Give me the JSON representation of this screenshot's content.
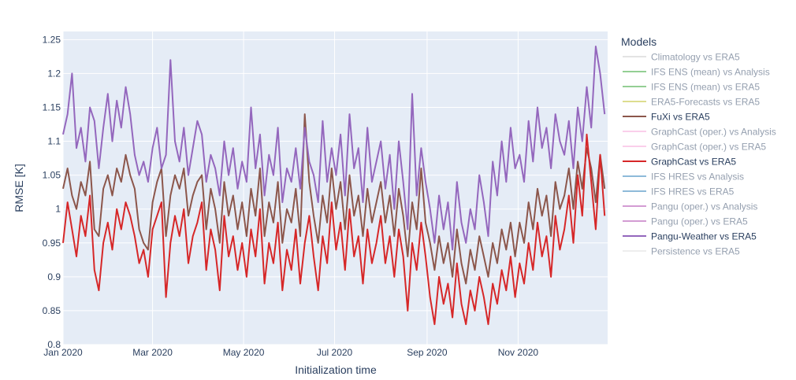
{
  "chart_data": {
    "type": "line",
    "xlabel": "Initialization time",
    "ylabel": "RMSE [K]",
    "xlim": [
      "2020-01-01",
      "2020-12-31"
    ],
    "ylim": [
      0.8,
      1.262
    ],
    "grid": true,
    "x_ticks": [
      {
        "date": "2020-01-01",
        "label": "Jan 2020"
      },
      {
        "date": "2020-03-01",
        "label": "Mar 2020"
      },
      {
        "date": "2020-05-01",
        "label": "May 2020"
      },
      {
        "date": "2020-07-01",
        "label": "Jul 2020"
      },
      {
        "date": "2020-09-01",
        "label": "Sep 2020"
      },
      {
        "date": "2020-11-01",
        "label": "Nov 2020"
      }
    ],
    "y_ticks": [
      {
        "value": 0.8,
        "label": "0.8"
      },
      {
        "value": 0.85,
        "label": "0.85"
      },
      {
        "value": 0.9,
        "label": "0.9"
      },
      {
        "value": 0.95,
        "label": "0.95"
      },
      {
        "value": 1.0,
        "label": "1"
      },
      {
        "value": 1.05,
        "label": "1.05"
      },
      {
        "value": 1.1,
        "label": "1.1"
      },
      {
        "value": 1.15,
        "label": "1.15"
      },
      {
        "value": 1.2,
        "label": "1.2"
      },
      {
        "value": 1.25,
        "label": "1.25"
      }
    ],
    "legend": {
      "title": "Models",
      "placement": "right",
      "entries": [
        {
          "name": "Climatology vs ERA5",
          "color": "#c8c8c8",
          "visible": false
        },
        {
          "name": "IFS ENS (mean) vs Analysis",
          "color": "#2ca02c",
          "visible": false
        },
        {
          "name": "IFS ENS (mean) vs ERA5",
          "color": "#2ca02c",
          "visible": false
        },
        {
          "name": "ERA5-Forecasts vs ERA5",
          "color": "#bcbd22",
          "visible": false
        },
        {
          "name": "FuXi vs ERA5",
          "color": "#8c564b",
          "visible": true
        },
        {
          "name": "GraphCast (oper.) vs Analysis",
          "color": "#f7a1d8",
          "visible": false
        },
        {
          "name": "GraphCast (oper.) vs ERA5",
          "color": "#f7a1d8",
          "visible": false
        },
        {
          "name": "GraphCast vs ERA5",
          "color": "#d62728",
          "visible": true
        },
        {
          "name": "IFS HRES vs Analysis",
          "color": "#1f77b4",
          "visible": false
        },
        {
          "name": "IFS HRES vs ERA5",
          "color": "#1f77b4",
          "visible": false
        },
        {
          "name": "Pangu (oper.) vs Analysis",
          "color": "#a83ca8",
          "visible": false
        },
        {
          "name": "Pangu (oper.) vs ERA5",
          "color": "#a83ca8",
          "visible": false
        },
        {
          "name": "Pangu-Weather vs ERA5",
          "color": "#9467bd",
          "visible": true
        },
        {
          "name": "Persistence vs ERA5",
          "color": "#dcdcdc",
          "visible": false
        }
      ]
    },
    "x": [
      "2020-01-01",
      "2020-01-04",
      "2020-01-07",
      "2020-01-10",
      "2020-01-13",
      "2020-01-16",
      "2020-01-19",
      "2020-01-22",
      "2020-01-25",
      "2020-01-28",
      "2020-01-31",
      "2020-02-03",
      "2020-02-06",
      "2020-02-09",
      "2020-02-12",
      "2020-02-15",
      "2020-02-18",
      "2020-02-21",
      "2020-02-24",
      "2020-02-27",
      "2020-03-01",
      "2020-03-04",
      "2020-03-07",
      "2020-03-10",
      "2020-03-13",
      "2020-03-16",
      "2020-03-19",
      "2020-03-22",
      "2020-03-25",
      "2020-03-28",
      "2020-03-31",
      "2020-04-03",
      "2020-04-06",
      "2020-04-09",
      "2020-04-12",
      "2020-04-15",
      "2020-04-18",
      "2020-04-21",
      "2020-04-24",
      "2020-04-27",
      "2020-04-30",
      "2020-05-03",
      "2020-05-06",
      "2020-05-09",
      "2020-05-12",
      "2020-05-15",
      "2020-05-18",
      "2020-05-21",
      "2020-05-24",
      "2020-05-27",
      "2020-05-30",
      "2020-06-02",
      "2020-06-05",
      "2020-06-08",
      "2020-06-11",
      "2020-06-14",
      "2020-06-17",
      "2020-06-20",
      "2020-06-23",
      "2020-06-26",
      "2020-06-29",
      "2020-07-02",
      "2020-07-05",
      "2020-07-08",
      "2020-07-11",
      "2020-07-14",
      "2020-07-17",
      "2020-07-20",
      "2020-07-23",
      "2020-07-26",
      "2020-07-29",
      "2020-08-01",
      "2020-08-04",
      "2020-08-07",
      "2020-08-10",
      "2020-08-13",
      "2020-08-16",
      "2020-08-19",
      "2020-08-22",
      "2020-08-25",
      "2020-08-28",
      "2020-08-31",
      "2020-09-03",
      "2020-09-06",
      "2020-09-09",
      "2020-09-12",
      "2020-09-15",
      "2020-09-18",
      "2020-09-21",
      "2020-09-24",
      "2020-09-27",
      "2020-09-30",
      "2020-10-03",
      "2020-10-06",
      "2020-10-09",
      "2020-10-12",
      "2020-10-15",
      "2020-10-18",
      "2020-10-21",
      "2020-10-24",
      "2020-10-27",
      "2020-10-30",
      "2020-11-02",
      "2020-11-05",
      "2020-11-08",
      "2020-11-11",
      "2020-11-14",
      "2020-11-17",
      "2020-11-20",
      "2020-11-23",
      "2020-11-26",
      "2020-11-29",
      "2020-12-02",
      "2020-12-05",
      "2020-12-08",
      "2020-12-11",
      "2020-12-14",
      "2020-12-17",
      "2020-12-20",
      "2020-12-23",
      "2020-12-26",
      "2020-12-29"
    ],
    "series": [
      {
        "name": "FuXi vs ERA5",
        "color": "#8c564b",
        "values": [
          1.03,
          1.06,
          1.02,
          1.0,
          1.04,
          1.02,
          1.07,
          0.97,
          0.96,
          1.03,
          1.05,
          1.02,
          1.06,
          1.04,
          1.08,
          1.05,
          1.03,
          0.97,
          0.95,
          0.94,
          1.01,
          1.04,
          1.06,
          0.96,
          1.02,
          1.05,
          1.03,
          1.06,
          0.99,
          1.02,
          1.04,
          1.05,
          0.97,
          1.03,
          1.0,
          0.95,
          1.04,
          0.99,
          1.02,
          0.97,
          1.01,
          0.96,
          1.03,
          0.99,
          1.06,
          0.96,
          1.01,
          0.98,
          1.04,
          0.95,
          1.0,
          0.98,
          1.03,
          0.96,
          1.14,
          1.04,
          0.99,
          0.95,
          1.02,
          0.98,
          1.06,
          1.0,
          1.04,
          0.97,
          1.05,
          0.99,
          1.02,
          0.96,
          1.03,
          0.98,
          1.01,
          1.04,
          0.98,
          1.02,
          0.96,
          1.03,
          0.99,
          0.93,
          1.01,
          0.97,
          1.06,
          0.98,
          0.95,
          0.91,
          0.96,
          0.92,
          0.95,
          0.9,
          0.97,
          0.92,
          0.89,
          0.94,
          0.91,
          0.96,
          0.93,
          0.9,
          0.95,
          0.92,
          0.97,
          0.94,
          0.98,
          0.93,
          0.98,
          0.95,
          1.01,
          0.97,
          1.03,
          0.99,
          1.02,
          0.96,
          1.04,
          1.0,
          1.02,
          1.06,
          1.0,
          1.07,
          1.03,
          1.09,
          1.06,
          1.01,
          1.08,
          1.03
        ]
      },
      {
        "name": "GraphCast vs ERA5",
        "color": "#d62728",
        "values": [
          0.95,
          1.01,
          0.97,
          0.93,
          0.99,
          0.96,
          1.02,
          0.91,
          0.88,
          0.95,
          0.98,
          0.94,
          1.0,
          0.97,
          1.01,
          0.99,
          0.96,
          0.92,
          0.94,
          0.9,
          0.97,
          0.99,
          1.01,
          0.87,
          0.95,
          0.99,
          0.96,
          1.0,
          0.92,
          0.96,
          0.98,
          1.01,
          0.91,
          0.97,
          0.94,
          0.88,
          0.99,
          0.93,
          0.96,
          0.91,
          0.95,
          0.9,
          0.97,
          0.93,
          1.0,
          0.89,
          0.95,
          0.92,
          0.98,
          0.88,
          0.94,
          0.91,
          0.97,
          0.89,
          0.95,
          0.99,
          0.93,
          0.88,
          0.96,
          0.92,
          1.01,
          0.94,
          0.98,
          0.91,
          1.0,
          0.93,
          0.96,
          0.89,
          0.97,
          0.92,
          0.95,
          0.99,
          0.92,
          0.96,
          0.9,
          0.97,
          0.93,
          0.85,
          0.95,
          0.91,
          0.98,
          0.93,
          0.87,
          0.83,
          0.9,
          0.86,
          0.89,
          0.84,
          0.92,
          0.86,
          0.83,
          0.88,
          0.85,
          0.9,
          0.87,
          0.83,
          0.89,
          0.86,
          0.91,
          0.88,
          0.93,
          0.87,
          0.92,
          0.89,
          0.95,
          0.91,
          0.98,
          0.93,
          0.96,
          0.9,
          0.99,
          0.94,
          0.97,
          1.02,
          0.95,
          1.05,
          0.99,
          1.11,
          1.04,
          0.97,
          1.08,
          0.99
        ]
      },
      {
        "name": "Pangu-Weather vs ERA5",
        "color": "#9467bd",
        "values": [
          1.11,
          1.14,
          1.2,
          1.09,
          1.12,
          1.07,
          1.15,
          1.13,
          1.06,
          1.12,
          1.17,
          1.1,
          1.16,
          1.12,
          1.18,
          1.14,
          1.08,
          1.05,
          1.07,
          1.04,
          1.09,
          1.12,
          1.06,
          1.08,
          1.22,
          1.1,
          1.07,
          1.12,
          1.05,
          1.09,
          1.13,
          1.11,
          1.04,
          1.08,
          1.06,
          1.02,
          1.1,
          1.05,
          1.09,
          1.03,
          1.07,
          1.04,
          1.15,
          1.06,
          1.11,
          1.02,
          1.08,
          1.05,
          1.12,
          1.01,
          1.06,
          1.04,
          1.09,
          1.03,
          1.12,
          1.07,
          1.05,
          1.01,
          1.13,
          1.04,
          1.09,
          1.05,
          1.11,
          1.02,
          1.14,
          1.06,
          1.09,
          1.01,
          1.12,
          1.04,
          1.07,
          1.1,
          1.03,
          1.08,
          1.0,
          1.1,
          1.04,
          0.97,
          1.17,
          1.02,
          1.09,
          1.04,
          1.0,
          0.95,
          1.02,
          0.97,
          1.01,
          0.94,
          1.04,
          0.98,
          0.95,
          1.0,
          0.97,
          1.05,
          1.01,
          0.96,
          1.07,
          1.02,
          1.1,
          1.04,
          1.12,
          1.06,
          1.08,
          1.04,
          1.13,
          1.07,
          1.15,
          1.09,
          1.12,
          1.06,
          1.14,
          1.1,
          1.08,
          1.13,
          1.06,
          1.15,
          1.1,
          1.18,
          1.12,
          1.24,
          1.2,
          1.14
        ]
      }
    ]
  }
}
